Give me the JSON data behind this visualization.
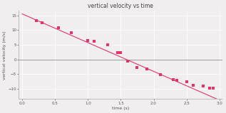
{
  "title": "vertical velocity vs time",
  "xlabel": "time (s)",
  "ylabel": "vertical velocity (m/s)",
  "xlim": [
    -0.05,
    3.05
  ],
  "ylim": [
    -13.5,
    16.5
  ],
  "xticks": [
    0,
    0.5,
    1.0,
    1.5,
    2.0,
    2.5,
    3.0
  ],
  "yticks": [
    -10,
    -5,
    0,
    5,
    10,
    15
  ],
  "data_points": [
    [
      0.22,
      13.2
    ],
    [
      0.3,
      12.4
    ],
    [
      0.55,
      10.7
    ],
    [
      0.75,
      9.0
    ],
    [
      1.0,
      6.4
    ],
    [
      1.1,
      6.1
    ],
    [
      1.3,
      5.0
    ],
    [
      1.45,
      2.4
    ],
    [
      1.5,
      2.2
    ],
    [
      1.6,
      -0.6
    ],
    [
      1.75,
      -2.9
    ],
    [
      1.9,
      -3.3
    ],
    [
      2.1,
      -5.3
    ],
    [
      2.3,
      -6.9
    ],
    [
      2.35,
      -7.1
    ],
    [
      2.5,
      -7.6
    ],
    [
      2.6,
      -8.8
    ],
    [
      2.75,
      -9.1
    ],
    [
      2.85,
      -9.9
    ],
    [
      2.9,
      -9.8
    ]
  ],
  "line_x": [
    0,
    3.05
  ],
  "line_slope": -9.8,
  "line_intercept": 15.5,
  "line_color": "#e8336a",
  "marker_color": "#e8336a",
  "marker_size": 5,
  "bg_color": "#f0eeee",
  "grid_color": "#ffffff",
  "zero_line_color": "#999999",
  "title_fontsize": 5.5,
  "axis_label_fontsize": 4.5,
  "tick_fontsize": 4.0
}
